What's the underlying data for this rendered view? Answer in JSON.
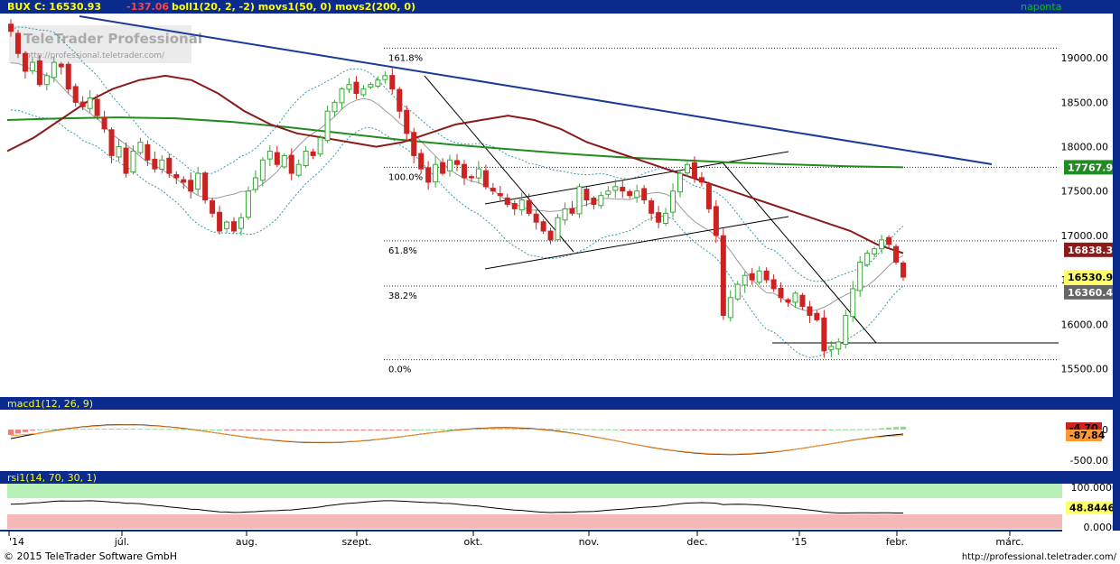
{
  "header": {
    "symbol": "BUX",
    "close_label": "C: 16530.93",
    "change": "-137.06",
    "indicators": "boll1(20, 2, -2) movs1(50, 0) movs2(200, 0)",
    "period": "naponta"
  },
  "watermark": {
    "title": "TeleTrader Professional",
    "url": "http://professional.teletrader.com/"
  },
  "footer": {
    "copyright": "© 2015 TeleTrader Software GmbH",
    "url": "http://professional.teletrader.com/"
  },
  "colors": {
    "frame_bar": "#0a2a8c",
    "header_text": "#ffff00",
    "period_text": "#00cc00",
    "candle_up": "#33aa33",
    "candle_down": "#cc2222",
    "ma50": "#8b1a1a",
    "ma200": "#228b22",
    "trendline": "#1a3a9a",
    "bollinger": "#3399aa"
  },
  "chart_data": [
    {
      "type": "candlestick",
      "title": "BUX",
      "x_ticks": [
        "'14",
        "júl.",
        "aug.",
        "szept.",
        "okt.",
        "nov.",
        "dec.",
        "'15",
        "febr.",
        "márc."
      ],
      "y_ticks": [
        19000,
        18500,
        18000,
        17500,
        17000,
        16500,
        16000,
        15500
      ],
      "y_tick_labels": [
        "19000.00",
        "18500.00",
        "18000.00",
        "17500.00",
        "17000.00",
        "16500.00",
        "16000.00",
        "15500.00"
      ],
      "ylim": [
        15200,
        19500
      ],
      "fibonacci": [
        {
          "label": "161.8%",
          "value": 19110
        },
        {
          "label": "100.0%",
          "value": 17767.94
        },
        {
          "label": "61.8%",
          "value": 16940
        },
        {
          "label": "38.2%",
          "value": 16430
        },
        {
          "label": "0.0%",
          "value": 15600
        }
      ],
      "price_labels": [
        {
          "text": "17767.94",
          "value": 17767.94,
          "color": "#228b22"
        },
        {
          "text": "16838.39",
          "value": 16838.39,
          "color": "#8b1a1a"
        },
        {
          "text": "16530.93",
          "value": 16530.93,
          "color": "#ffff66"
        },
        {
          "text": "16360.45",
          "value": 16360.45,
          "color": "#666666"
        }
      ],
      "series_close_approx": [
        19300,
        19050,
        18850,
        18950,
        18700,
        18800,
        18950,
        18900,
        18650,
        18500,
        18450,
        18550,
        18350,
        18200,
        17900,
        18000,
        17700,
        17950,
        18050,
        17850,
        17750,
        17850,
        17700,
        17650,
        17600,
        17500,
        17700,
        17400,
        17250,
        17050,
        17150,
        17050,
        17200,
        17500,
        17650,
        17850,
        17950,
        17800,
        17900,
        17700,
        17800,
        17950,
        17900,
        18100,
        18400,
        18500,
        18650,
        18700,
        18600,
        18650,
        18700,
        18750,
        18800,
        18650,
        18400,
        18150,
        17900,
        17750,
        17600,
        17800,
        17700,
        17850,
        17800,
        17650,
        17650,
        17750,
        17550,
        17500,
        17450,
        17350,
        17300,
        17400,
        17250,
        17150,
        17050,
        16950,
        17200,
        17300,
        17250,
        17550,
        17400,
        17350,
        17450,
        17500,
        17550,
        17500,
        17450,
        17500,
        17400,
        17250,
        17150,
        17250,
        17500,
        17700,
        17800,
        17650,
        17600,
        17300,
        17000,
        16100,
        16300,
        16450,
        16550,
        16500,
        16600,
        16500,
        16400,
        16300,
        16250,
        16350,
        16200,
        16100,
        16050,
        15700,
        15750,
        15800,
        16100,
        16400,
        16700,
        16800,
        16850,
        16950,
        16900,
        16700,
        16530.93
      ],
      "ma50_approx": [
        17950,
        18100,
        18300,
        18500,
        18650,
        18750,
        18800,
        18750,
        18600,
        18400,
        18250,
        18150,
        18100,
        18050,
        18000,
        18050,
        18150,
        18250,
        18300,
        18350,
        18300,
        18200,
        18050,
        17950,
        17850,
        17750,
        17650,
        17550,
        17450,
        17350,
        17250,
        17150,
        17050,
        16900,
        16800
      ],
      "ma200_approx": [
        18300,
        18320,
        18330,
        18320,
        18280,
        18220,
        18150,
        18080,
        18020,
        17970,
        17920,
        17880,
        17850,
        17820,
        17800,
        17780,
        17767.94
      ]
    },
    {
      "type": "line",
      "title": "macd1(12, 26, 9)",
      "y_ticks": [
        0,
        -500
      ],
      "y_tick_labels": [
        "0.00",
        "-500.00"
      ],
      "value_labels": [
        {
          "text": "-4.70",
          "color": "#cc2222"
        },
        {
          "text": "-87.84",
          "color": "#ff9933"
        }
      ]
    },
    {
      "type": "line",
      "title": "rsi1(14, 70, 30, 1)",
      "y_ticks": [
        100,
        0
      ],
      "y_tick_labels": [
        "100.0000",
        "0.0000"
      ],
      "value_labels": [
        {
          "text": "48.8446",
          "color": "#ffff66"
        }
      ],
      "zones": {
        "overbought": 70,
        "oversold": 30
      }
    }
  ]
}
